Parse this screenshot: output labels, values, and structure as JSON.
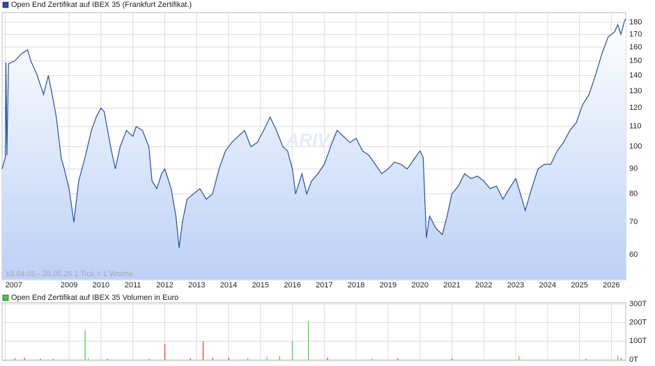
{
  "chart_data": [
    {
      "type": "line",
      "title": "Open End Zertifikat auf IBEX 35  (Frankfurt Zertifikat.)",
      "note": "19.04.05 - 28.05.26    1 Tick = 1 Woche",
      "watermark": "ARIVA",
      "log_scale": true,
      "grid": true,
      "color": "#2150a8",
      "xlim": [
        2006.9,
        2026.45
      ],
      "xticks": [
        2007,
        2009,
        2010,
        2011,
        2012,
        2013,
        2014,
        2015,
        2016,
        2017,
        2018,
        2019,
        2020,
        2021,
        2022,
        2023,
        2024,
        2025,
        2026
      ],
      "ylim": [
        53.5,
        188.5
      ],
      "yticks": [
        60,
        70,
        80,
        90,
        100,
        110,
        120,
        130,
        140,
        150,
        160,
        170,
        180
      ],
      "x": [
        2006.9,
        2007.0,
        2007.02,
        2007.05,
        2007.1,
        2007.3,
        2007.5,
        2007.7,
        2007.8,
        2007.9,
        2008.0,
        2008.2,
        2008.35,
        2008.5,
        2008.6,
        2008.75,
        2008.85,
        2009.0,
        2009.15,
        2009.3,
        2009.5,
        2009.7,
        2009.85,
        2010.0,
        2010.1,
        2010.3,
        2010.45,
        2010.6,
        2010.8,
        2011.0,
        2011.1,
        2011.3,
        2011.5,
        2011.6,
        2011.75,
        2011.9,
        2012.0,
        2012.2,
        2012.35,
        2012.45,
        2012.55,
        2012.7,
        2012.9,
        2013.1,
        2013.3,
        2013.5,
        2013.7,
        2013.9,
        2014.1,
        2014.3,
        2014.5,
        2014.7,
        2014.9,
        2015.1,
        2015.3,
        2015.5,
        2015.7,
        2015.85,
        2016.0,
        2016.1,
        2016.3,
        2016.45,
        2016.6,
        2016.8,
        2017.0,
        2017.2,
        2017.4,
        2017.6,
        2017.8,
        2018.0,
        2018.2,
        2018.4,
        2018.6,
        2018.8,
        2019.0,
        2019.2,
        2019.4,
        2019.6,
        2019.8,
        2020.0,
        2020.1,
        2020.2,
        2020.3,
        2020.5,
        2020.7,
        2020.85,
        2021.0,
        2021.2,
        2021.4,
        2021.6,
        2021.8,
        2022.0,
        2022.2,
        2022.4,
        2022.6,
        2022.8,
        2023.0,
        2023.2,
        2023.3,
        2023.5,
        2023.7,
        2023.9,
        2024.1,
        2024.3,
        2024.5,
        2024.7,
        2024.9,
        2025.1,
        2025.3,
        2025.5,
        2025.7,
        2025.9,
        2026.1,
        2026.2,
        2026.3,
        2026.4,
        2026.45
      ],
      "values": [
        90,
        95,
        149,
        96,
        148,
        150,
        155,
        158,
        150,
        145,
        140,
        128,
        140,
        125,
        115,
        95,
        90,
        82,
        70,
        85,
        95,
        108,
        115,
        120,
        118,
        100,
        90,
        100,
        108,
        105,
        110,
        108,
        100,
        85,
        82,
        88,
        90,
        82,
        72,
        62,
        70,
        78,
        80,
        82,
        78,
        80,
        90,
        98,
        102,
        105,
        108,
        100,
        102,
        108,
        115,
        108,
        100,
        98,
        90,
        80,
        88,
        80,
        85,
        88,
        92,
        100,
        108,
        105,
        102,
        104,
        98,
        96,
        92,
        88,
        90,
        93,
        92,
        90,
        94,
        98,
        95,
        65,
        72,
        68,
        66,
        72,
        80,
        83,
        88,
        86,
        87,
        85,
        82,
        83,
        78,
        82,
        86,
        78,
        74,
        82,
        90,
        92,
        92,
        98,
        102,
        108,
        112,
        122,
        128,
        140,
        155,
        168,
        172,
        178,
        170,
        180,
        183
      ]
    },
    {
      "type": "bar",
      "title": "Open End Zertifikat auf IBEX 35  Volumen in Euro",
      "grid": true,
      "xlim": [
        2006.9,
        2026.45
      ],
      "ylim": [
        0,
        300
      ],
      "yticks": [
        {
          "value": 0,
          "label": "0T"
        },
        {
          "value": 100,
          "label": "100T"
        },
        {
          "value": 200,
          "label": "200T"
        },
        {
          "value": 300,
          "label": "300T"
        }
      ],
      "x": [
        2007.3,
        2007.6,
        2008.1,
        2008.5,
        2009.5,
        2009.6,
        2010.2,
        2011.5,
        2012.0,
        2012.8,
        2013.2,
        2013.5,
        2014.0,
        2014.6,
        2015.2,
        2015.6,
        2016.0,
        2016.5,
        2017.1,
        2018.5,
        2019.3,
        2021.0,
        2023.1,
        2025.2,
        2026.2,
        2026.3
      ],
      "values": [
        8,
        10,
        6,
        5,
        160,
        10,
        5,
        6,
        85,
        8,
        100,
        10,
        12,
        8,
        15,
        20,
        100,
        210,
        12,
        6,
        8,
        6,
        20,
        5,
        22,
        10
      ],
      "colors": [
        "#d33",
        "#d33",
        "#d33",
        "#d33",
        "#4c4",
        "#4c4",
        "#d33",
        "#4c4",
        "#d33",
        "#d33",
        "#d33",
        "#d33",
        "#d33",
        "#4c4",
        "#4c4",
        "#4c4",
        "#4c4",
        "#4c4",
        "#d33",
        "#4c4",
        "#d33",
        "#d33",
        "#4c4",
        "#d33",
        "#4c4",
        "#d33"
      ]
    }
  ]
}
